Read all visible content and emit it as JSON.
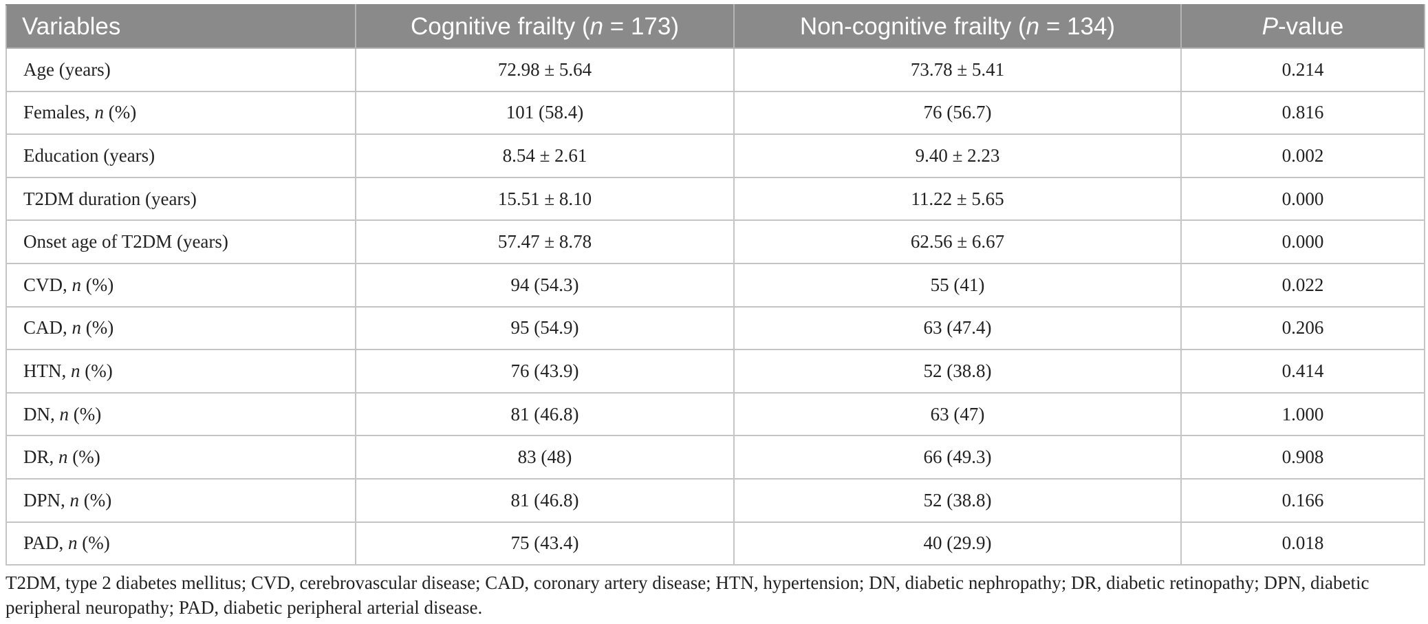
{
  "table": {
    "headers": [
      {
        "pre": "Variables",
        "italic": "",
        "post": ""
      },
      {
        "pre": "Cognitive frailty (",
        "italic": "n",
        "post": " = 173)"
      },
      {
        "pre": "Non-cognitive frailty (",
        "italic": "n",
        "post": " = 134)"
      },
      {
        "pre": "",
        "italic": "P",
        "post": "-value"
      }
    ],
    "rows": [
      {
        "label": {
          "pre": "Age (years)",
          "italic": "",
          "post": ""
        },
        "cognitive": "72.98 ± 5.64",
        "non_cognitive": "73.78 ± 5.41",
        "p_value": "0.214"
      },
      {
        "label": {
          "pre": "Females, ",
          "italic": "n",
          "post": " (%)"
        },
        "cognitive": "101 (58.4)",
        "non_cognitive": "76 (56.7)",
        "p_value": "0.816"
      },
      {
        "label": {
          "pre": "Education (years)",
          "italic": "",
          "post": ""
        },
        "cognitive": "8.54 ± 2.61",
        "non_cognitive": "9.40 ± 2.23",
        "p_value": "0.002"
      },
      {
        "label": {
          "pre": "T2DM duration (years)",
          "italic": "",
          "post": ""
        },
        "cognitive": "15.51 ± 8.10",
        "non_cognitive": "11.22 ± 5.65",
        "p_value": "0.000"
      },
      {
        "label": {
          "pre": "Onset age of T2DM (years)",
          "italic": "",
          "post": ""
        },
        "cognitive": "57.47 ± 8.78",
        "non_cognitive": "62.56 ± 6.67",
        "p_value": "0.000"
      },
      {
        "label": {
          "pre": "CVD, ",
          "italic": "n",
          "post": " (%)"
        },
        "cognitive": "94 (54.3)",
        "non_cognitive": "55 (41)",
        "p_value": "0.022"
      },
      {
        "label": {
          "pre": "CAD, ",
          "italic": "n",
          "post": " (%)"
        },
        "cognitive": "95 (54.9)",
        "non_cognitive": "63 (47.4)",
        "p_value": "0.206"
      },
      {
        "label": {
          "pre": "HTN, ",
          "italic": "n",
          "post": " (%)"
        },
        "cognitive": "76 (43.9)",
        "non_cognitive": "52 (38.8)",
        "p_value": "0.414"
      },
      {
        "label": {
          "pre": "DN, ",
          "italic": "n",
          "post": " (%)"
        },
        "cognitive": "81 (46.8)",
        "non_cognitive": "63 (47)",
        "p_value": "1.000"
      },
      {
        "label": {
          "pre": "DR, ",
          "italic": "n",
          "post": " (%)"
        },
        "cognitive": "83 (48)",
        "non_cognitive": "66 (49.3)",
        "p_value": "0.908"
      },
      {
        "label": {
          "pre": "DPN, ",
          "italic": "n",
          "post": " (%)"
        },
        "cognitive": "81 (46.8)",
        "non_cognitive": "52 (38.8)",
        "p_value": "0.166"
      },
      {
        "label": {
          "pre": "PAD, ",
          "italic": "n",
          "post": " (%)"
        },
        "cognitive": "75 (43.4)",
        "non_cognitive": "40 (29.9)",
        "p_value": "0.018"
      }
    ]
  },
  "footnote": "T2DM, type 2 diabetes mellitus; CVD, cerebrovascular disease; CAD, coronary artery disease; HTN, hypertension; DN, diabetic nephropathy; DR, diabetic retinopathy; DPN, diabetic peripheral neuropathy; PAD, diabetic peripheral arterial disease.",
  "colors": {
    "header_background": "#8a8a8a",
    "header_text": "#ffffff",
    "grid_lines": "#c4c4c4",
    "body_text": "#222222"
  }
}
